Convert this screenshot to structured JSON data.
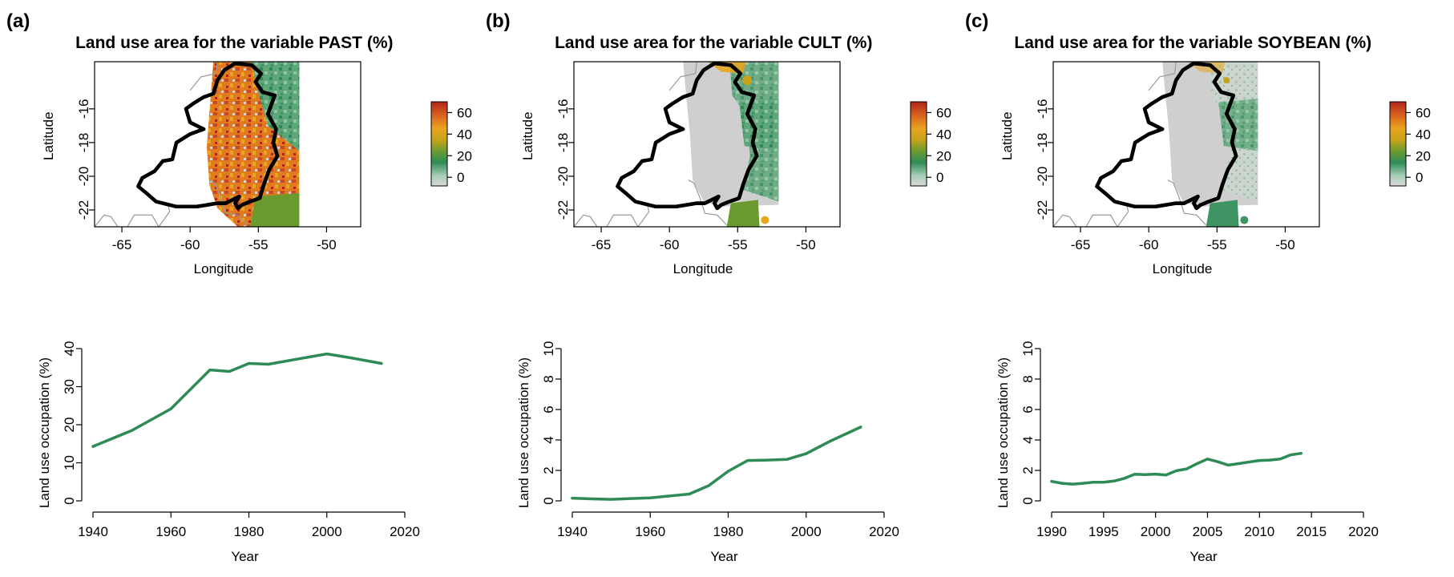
{
  "panels": [
    {
      "letter": "(a)",
      "map": {
        "title": "Land use area for the variable PAST (%)",
        "xlabel": "Longitude",
        "ylabel": "Latitude",
        "xticks": [
          "-65",
          "-60",
          "-55",
          "-50"
        ],
        "yticks": [
          "-16",
          "-18",
          "-20",
          "-22"
        ],
        "legend_ticks": [
          "60",
          "40",
          "20",
          "0"
        ],
        "fill_style": "past"
      }
    },
    {
      "letter": "(b)",
      "map": {
        "title": "Land use area for the variable CULT (%)",
        "xlabel": "Longitude",
        "ylabel": "Latitude",
        "xticks": [
          "-65",
          "-60",
          "-55",
          "-50"
        ],
        "yticks": [
          "-16",
          "-18",
          "-20",
          "-22"
        ],
        "legend_ticks": [
          "60",
          "40",
          "20",
          "0"
        ],
        "fill_style": "cult"
      }
    },
    {
      "letter": "(c)",
      "map": {
        "title": "Land use area for the variable SOYBEAN (%)",
        "xlabel": "Longitude",
        "ylabel": "Latitude",
        "xticks": [
          "-65",
          "-60",
          "-55",
          "-50"
        ],
        "yticks": [
          "-16",
          "-18",
          "-20",
          "-22"
        ],
        "legend_ticks": [
          "60",
          "40",
          "20",
          "0"
        ],
        "fill_style": "soy"
      }
    }
  ],
  "colors": {
    "line": "#2e8b57",
    "legend_scale": [
      "#d8d8d8",
      "#9ec9b0",
      "#2e8b57",
      "#6b9a2e",
      "#b7a11c",
      "#e8a51e",
      "#e07b20",
      "#c84a1e",
      "#b0241a"
    ]
  },
  "chart_data": [
    {
      "type": "line",
      "xlabel": "Year",
      "ylabel": "Land use occupation (%)",
      "xlim": [
        1940,
        2020
      ],
      "ylim": [
        0,
        40
      ],
      "xticks": [
        1940,
        1960,
        1980,
        2000,
        2020
      ],
      "yticks": [
        0,
        10,
        20,
        30,
        40
      ],
      "x": [
        1940,
        1950,
        1960,
        1970,
        1975,
        1980,
        1985,
        1995,
        2000,
        2006,
        2014
      ],
      "y": [
        14.3,
        18.5,
        24.2,
        34.4,
        34.0,
        36.1,
        35.9,
        37.7,
        38.6,
        37.6,
        36.1
      ]
    },
    {
      "type": "line",
      "xlabel": "Year",
      "ylabel": "Land use occupation (%)",
      "xlim": [
        1940,
        2020
      ],
      "ylim": [
        0,
        10
      ],
      "xticks": [
        1940,
        1960,
        1980,
        2000,
        2020
      ],
      "yticks": [
        0,
        2,
        4,
        6,
        8,
        10
      ],
      "x": [
        1940,
        1945,
        1950,
        1955,
        1960,
        1965,
        1970,
        1975,
        1980,
        1985,
        1990,
        1995,
        2000,
        2006,
        2014
      ],
      "y": [
        0.18,
        0.13,
        0.1,
        0.15,
        0.2,
        0.32,
        0.45,
        1.0,
        1.95,
        2.65,
        2.68,
        2.72,
        3.1,
        3.9,
        4.85
      ]
    },
    {
      "type": "line",
      "xlabel": "Year",
      "ylabel": "Land use occupation (%)",
      "xlim": [
        1990,
        2020
      ],
      "ylim": [
        0,
        10
      ],
      "xticks": [
        1990,
        1995,
        2000,
        2005,
        2010,
        2015,
        2020
      ],
      "yticks": [
        0,
        2,
        4,
        6,
        8,
        10
      ],
      "x": [
        1990,
        1991,
        1992,
        1993,
        1994,
        1995,
        1996,
        1997,
        1998,
        1999,
        2000,
        2001,
        2002,
        2003,
        2004,
        2005,
        2006,
        2007,
        2008,
        2009,
        2010,
        2011,
        2012,
        2013,
        2014
      ],
      "y": [
        1.28,
        1.15,
        1.1,
        1.15,
        1.22,
        1.22,
        1.3,
        1.48,
        1.75,
        1.72,
        1.76,
        1.7,
        1.98,
        2.1,
        2.45,
        2.75,
        2.57,
        2.35,
        2.45,
        2.55,
        2.65,
        2.68,
        2.75,
        3.02,
        3.12
      ]
    }
  ]
}
